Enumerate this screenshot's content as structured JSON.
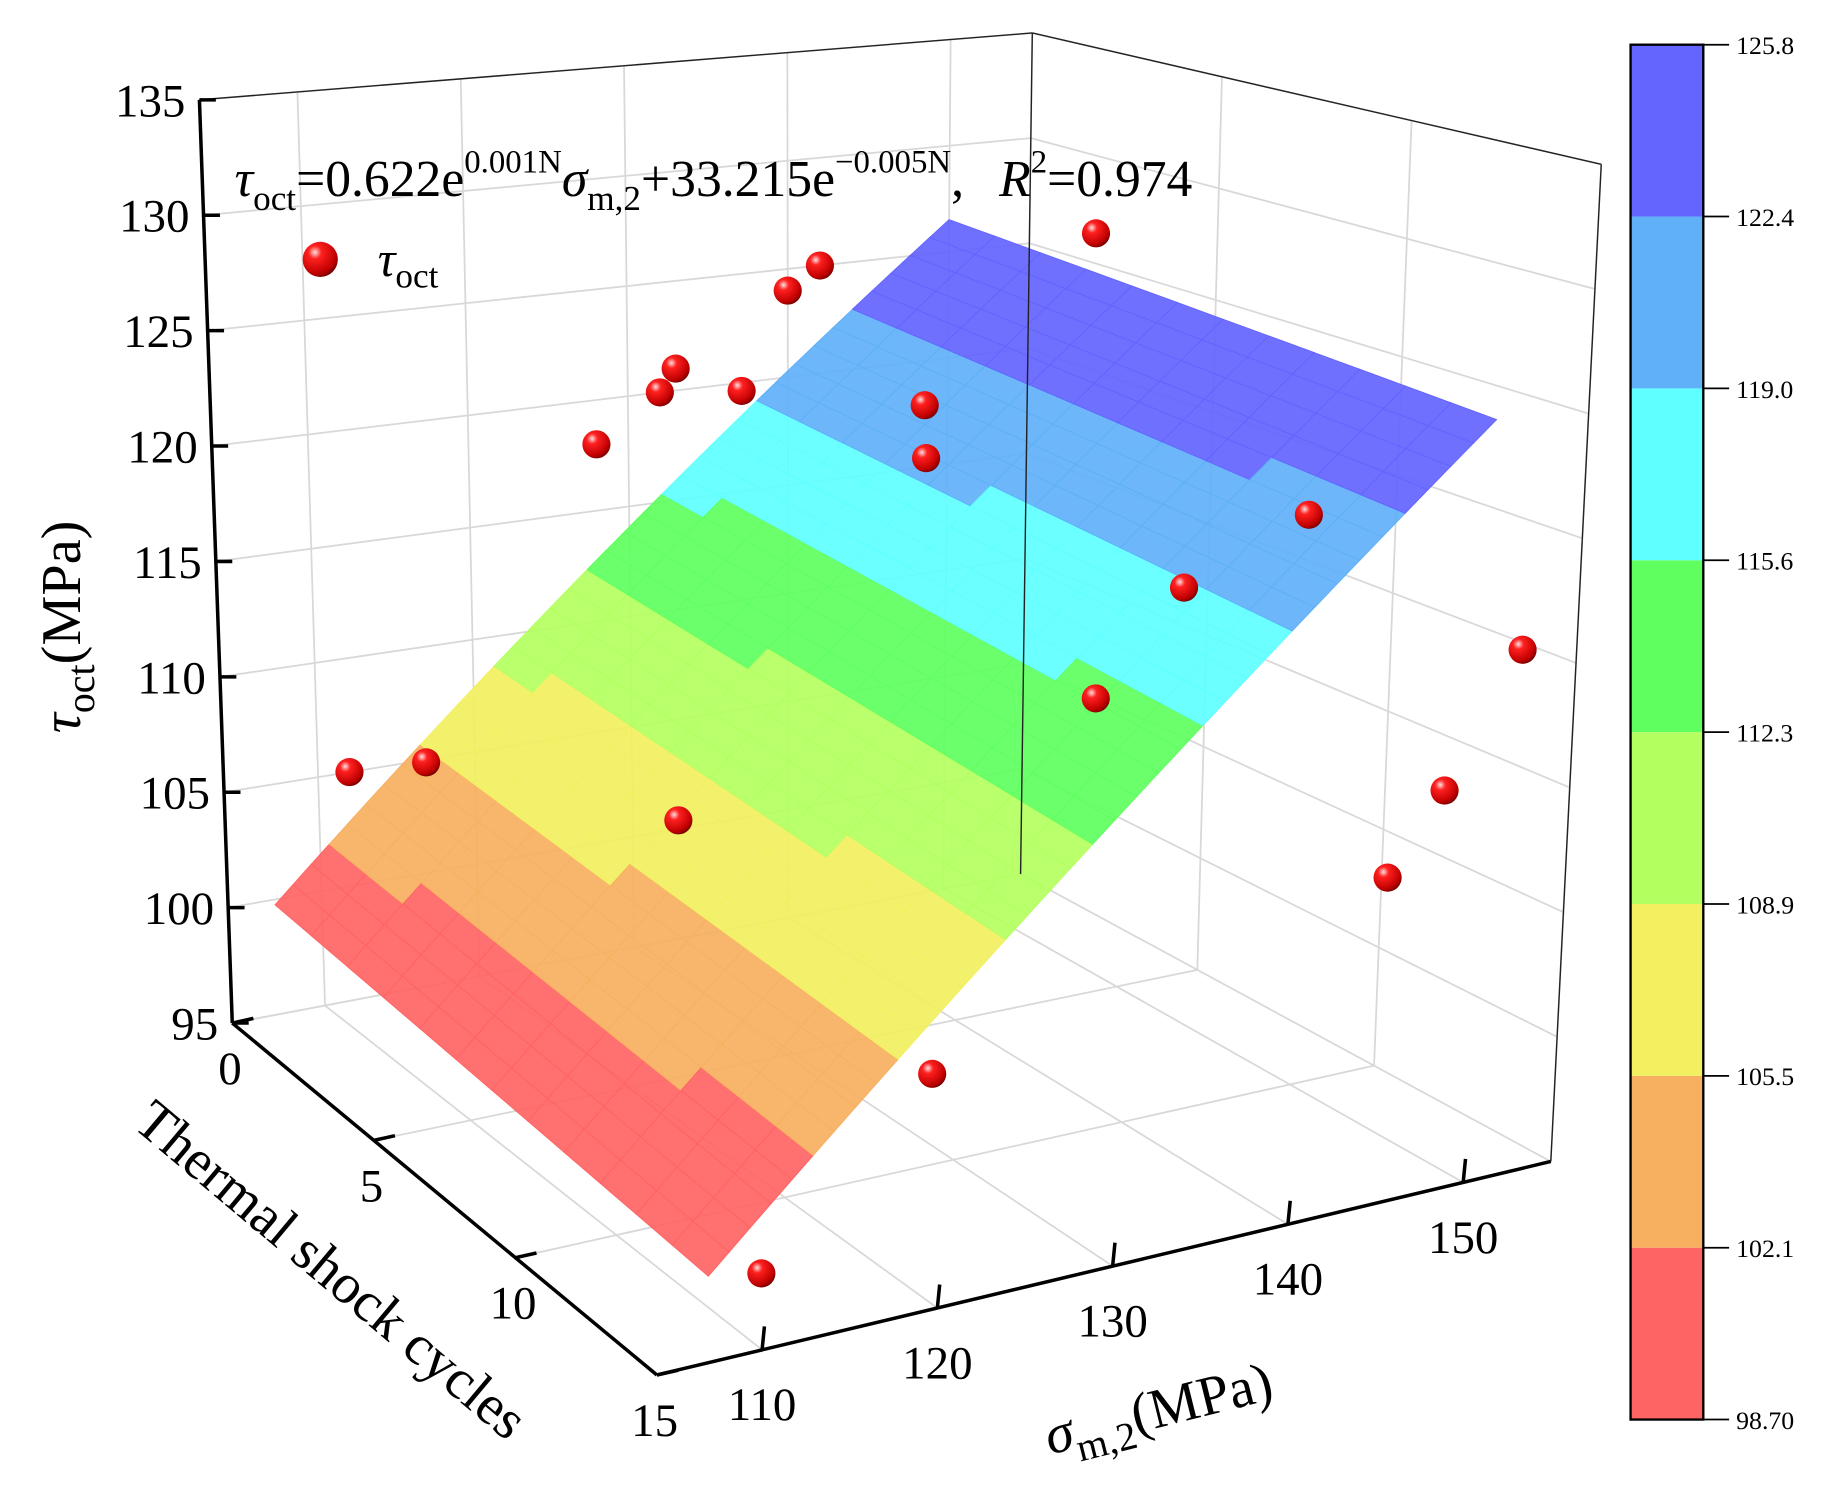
{
  "chart_data": {
    "type": "scatter3d-surface",
    "equation": {
      "lhs": "τ",
      "lhs_sub": "oct",
      "eq": "=0.622e",
      "sup1": "0.001N",
      "sigma": "σ",
      "sigma_sub": "m,2",
      "plus": "+33.215e",
      "sup2": "−0.005N",
      "comma": ",",
      "r": "R",
      "r_sup": "2",
      "r_val": "=0.974"
    },
    "fit": {
      "a": 0.622,
      "b": 0.001,
      "c": 33.215,
      "d": -0.005,
      "r2": 0.974
    },
    "legend": {
      "symbol": "τ",
      "sub": "oct",
      "color": "#e00000"
    },
    "zlabel": {
      "main": "τ",
      "sub": "oct",
      "unit": "(MPa)"
    },
    "xlabel": {
      "main": "σ",
      "sub": "m,2",
      "unit": "(MPa)"
    },
    "ylabel": "Thermal shock cycles",
    "zticks": [
      "95",
      "100",
      "105",
      "110",
      "115",
      "120",
      "125",
      "130",
      "135"
    ],
    "zlim": [
      95,
      135
    ],
    "yticks": [
      "0",
      "5",
      "10",
      "15"
    ],
    "ylim": [
      0,
      15
    ],
    "xticks": [
      "110",
      "120",
      "130",
      "140",
      "150"
    ],
    "xlim": [
      104,
      155
    ],
    "surface_x_range": [
      107,
      150
    ],
    "points": [
      [
        150,
        4,
        128
      ],
      [
        140,
        0,
        124
      ],
      [
        142,
        0,
        125
      ],
      [
        133,
        0,
        121
      ],
      [
        132,
        0,
        120
      ],
      [
        135,
        1,
        120.5
      ],
      [
        128,
        0,
        118
      ],
      [
        140,
        4,
        119
      ],
      [
        142,
        3,
        120.5
      ],
      [
        150,
        10,
        119
      ],
      [
        145,
        9,
        116
      ],
      [
        140,
        9,
        112
      ],
      [
        152,
        15,
        116
      ],
      [
        148,
        15,
        111
      ],
      [
        145,
        15,
        108
      ],
      [
        123,
        5,
        106
      ],
      [
        115,
        1,
        106
      ],
      [
        112,
        0,
        105
      ],
      [
        125,
        12,
        101
      ],
      [
        110,
        15,
        98
      ]
    ],
    "colorbar": {
      "levels": [
        "98.70",
        "102.1",
        "105.5",
        "108.9",
        "112.3",
        "115.6",
        "119.0",
        "122.4",
        "125.8"
      ],
      "values": [
        98.7,
        102.1,
        105.5,
        108.9,
        112.3,
        115.6,
        119.0,
        122.4,
        125.8
      ],
      "colors": [
        "#ff6464",
        "#f7b060",
        "#f2f060",
        "#b4ff60",
        "#60ff60",
        "#60ffff",
        "#60b0f8",
        "#6464ff"
      ]
    }
  }
}
